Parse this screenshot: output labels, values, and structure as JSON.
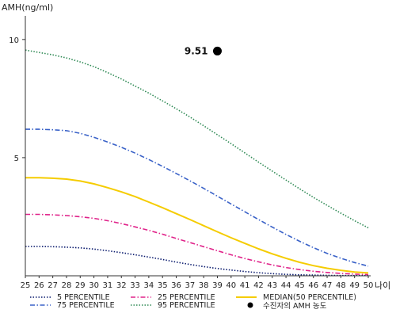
{
  "chart_data": {
    "type": "line",
    "ylabel": "AMH(ng/ml)",
    "xlabel": "나이",
    "x": [
      25,
      26,
      27,
      28,
      29,
      30,
      31,
      32,
      33,
      34,
      35,
      36,
      37,
      38,
      39,
      40,
      41,
      42,
      43,
      44,
      45,
      46,
      47,
      48,
      49,
      50
    ],
    "xlim": [
      25,
      50
    ],
    "ylim": [
      0,
      11
    ],
    "yticks": [
      5,
      10
    ],
    "grid": false,
    "legend_position": "bottom",
    "series": [
      {
        "name": "5 PERCENTILE",
        "color": "#0b1b6e",
        "dash": "dotted",
        "values": [
          1.24,
          1.24,
          1.23,
          1.21,
          1.18,
          1.13,
          1.06,
          0.98,
          0.89,
          0.79,
          0.69,
          0.58,
          0.48,
          0.39,
          0.31,
          0.24,
          0.18,
          0.13,
          0.09,
          0.06,
          0.04,
          0.03,
          0.02,
          0.01,
          0.01,
          0.01
        ]
      },
      {
        "name": "25 PERCENTILE",
        "color": "#e0238a",
        "dash": "dashdot",
        "values": [
          2.6,
          2.6,
          2.58,
          2.55,
          2.5,
          2.43,
          2.33,
          2.21,
          2.07,
          1.92,
          1.76,
          1.58,
          1.41,
          1.23,
          1.06,
          0.89,
          0.73,
          0.59,
          0.46,
          0.35,
          0.26,
          0.19,
          0.14,
          0.1,
          0.07,
          0.05
        ]
      },
      {
        "name": "75 PERCENTILE",
        "color": "#3a62c8",
        "dash": "dashdot",
        "values": [
          6.2,
          6.2,
          6.18,
          6.14,
          6.03,
          5.86,
          5.66,
          5.44,
          5.19,
          4.92,
          4.63,
          4.33,
          4.02,
          3.7,
          3.37,
          3.04,
          2.71,
          2.38,
          2.06,
          1.75,
          1.46,
          1.19,
          0.95,
          0.74,
          0.56,
          0.41
        ]
      },
      {
        "name": "95 PERCENTILE",
        "color": "#2f8a55",
        "dash": "dotted",
        "values": [
          9.55,
          9.45,
          9.35,
          9.22,
          9.05,
          8.85,
          8.6,
          8.33,
          8.03,
          7.73,
          7.4,
          7.07,
          6.72,
          6.35,
          5.97,
          5.59,
          5.2,
          4.81,
          4.43,
          4.05,
          3.68,
          3.32,
          2.98,
          2.65,
          2.33,
          2.03
        ]
      },
      {
        "name": "MEDIAN(50 PERCENTILE)",
        "color": "#f5cc00",
        "dash": "solid",
        "values": [
          4.15,
          4.15,
          4.13,
          4.09,
          4.01,
          3.89,
          3.73,
          3.55,
          3.35,
          3.12,
          2.88,
          2.63,
          2.38,
          2.12,
          1.86,
          1.61,
          1.37,
          1.14,
          0.93,
          0.74,
          0.57,
          0.43,
          0.32,
          0.23,
          0.16,
          0.12
        ]
      }
    ],
    "point": {
      "name": "수진자의 AMH 농도",
      "x": 39,
      "y": 9.51,
      "label": "9.51",
      "color": "#000000"
    }
  }
}
